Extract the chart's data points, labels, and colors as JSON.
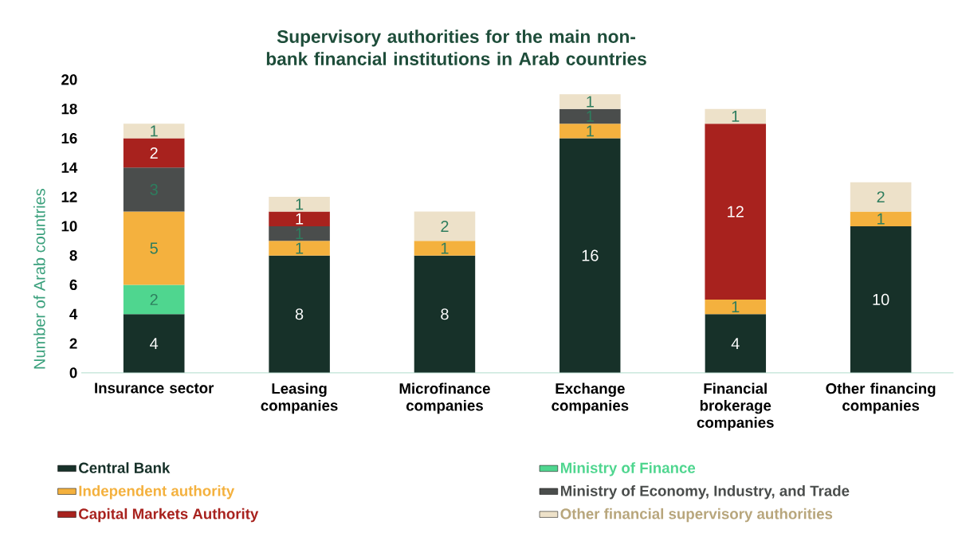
{
  "chart_data": {
    "type": "bar",
    "stacked": true,
    "data_labels": true,
    "legend": "bottom",
    "title": "Supervisory authorities for the main non-bank financial institutions in Arab countries",
    "ylabel": "Number of Arab countries",
    "categories": [
      "Insurance sector",
      "Leasing companies",
      "Microfinance companies",
      "Exchange companies",
      "Financial brokerage companies",
      "Other financing companies"
    ],
    "ylim": [
      0,
      20
    ],
    "yticks": [
      0,
      2,
      4,
      6,
      8,
      10,
      12,
      14,
      16,
      18,
      20
    ],
    "series": [
      {
        "name": "Central Bank",
        "color": "#173129",
        "values": [
          4,
          8,
          8,
          16,
          4,
          10
        ]
      },
      {
        "name": "Ministry of Finance",
        "color": "#4fd68f",
        "values": [
          2,
          null,
          null,
          null,
          null,
          null
        ]
      },
      {
        "name": "Independent authority",
        "color": "#f4b13e",
        "values": [
          5,
          1,
          1,
          1,
          1,
          1
        ]
      },
      {
        "name": "Ministry of Economy, Industry, and Trade",
        "color": "#4a4d4c",
        "values": [
          3,
          1,
          null,
          1,
          null,
          null
        ]
      },
      {
        "name": "Capital Markets Authority",
        "color": "#a8221e",
        "values": [
          2,
          1,
          null,
          null,
          12,
          null
        ]
      },
      {
        "name": "Other financial supervisory authorities",
        "color": "#ede1c9",
        "values": [
          1,
          1,
          2,
          1,
          1,
          2
        ]
      }
    ]
  }
}
